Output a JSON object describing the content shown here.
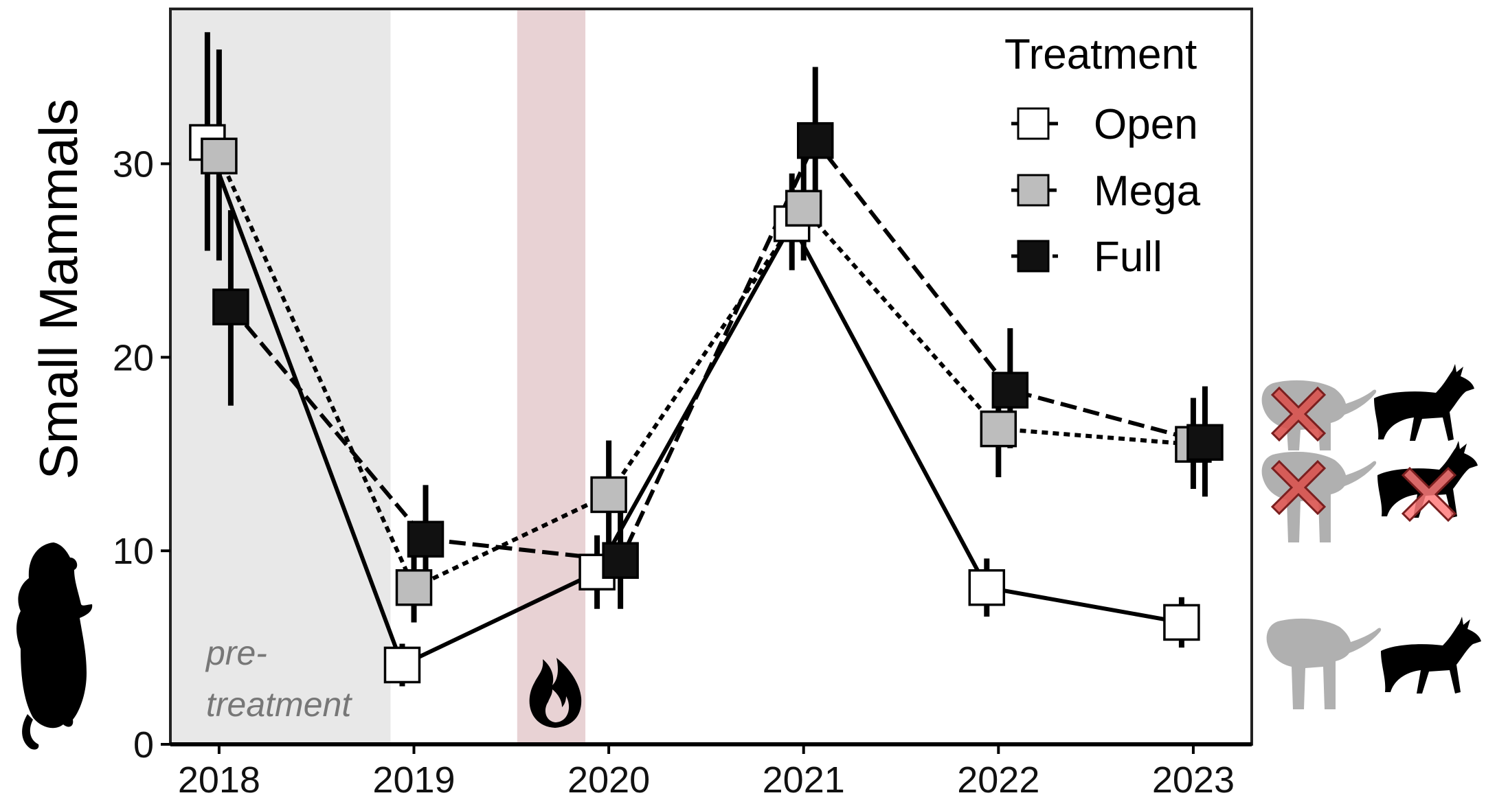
{
  "chart_data": {
    "type": "line",
    "ylabel": "Small Mammals",
    "xlabel": "",
    "x": [
      2018,
      2019,
      2020,
      2021,
      2022,
      2023
    ],
    "xlim": [
      2017.75,
      2023.3
    ],
    "ylim": [
      0,
      38
    ],
    "yticks": [
      0,
      10,
      20,
      30
    ],
    "x_tick_labels": [
      "2018",
      "2019",
      "2020",
      "2021",
      "2022",
      "2023"
    ],
    "y_tick_labels": [
      "0",
      "10",
      "20",
      "30"
    ],
    "grid": false,
    "legend": {
      "title": "Treatment",
      "placement": "top-right",
      "entries": [
        "Open",
        "Mega",
        "Full"
      ]
    },
    "shaded_periods": [
      {
        "from": 2017.75,
        "to": 2018.88,
        "color": "#e8e8e8",
        "label_line1": "pre-",
        "label_line2": "treatment"
      },
      {
        "from": 2019.53,
        "to": 2019.88,
        "color": "#e8d2d4",
        "icon": "fire-icon"
      }
    ],
    "series": [
      {
        "name": "Open",
        "fill": "#ffffff",
        "line_style": "solid",
        "x_offset": -0.06,
        "values": [
          31.1,
          4.1,
          8.9,
          26.9,
          8.1,
          6.3
        ],
        "lower": [
          25.5,
          3.0,
          7.0,
          24.5,
          6.6,
          5.0
        ],
        "upper": [
          36.8,
          5.2,
          10.8,
          29.5,
          9.6,
          7.6
        ]
      },
      {
        "name": "Mega",
        "fill": "#bdbdbd",
        "line_style": "dotted",
        "x_offset": 0.0,
        "values": [
          30.4,
          8.1,
          12.9,
          27.7,
          16.3,
          15.5
        ],
        "lower": [
          25.0,
          6.3,
          10.2,
          25.0,
          13.8,
          13.2
        ],
        "upper": [
          35.9,
          10.1,
          15.7,
          30.5,
          18.7,
          17.9
        ]
      },
      {
        "name": "Full",
        "fill": "#111111",
        "line_style": "dashed",
        "x_offset": 0.06,
        "values": [
          22.6,
          10.6,
          9.5,
          31.2,
          18.3,
          15.6
        ],
        "lower": [
          17.5,
          8.2,
          7.0,
          27.6,
          15.3,
          12.8
        ],
        "upper": [
          27.6,
          13.4,
          12.2,
          35.0,
          21.5,
          18.5
        ]
      }
    ],
    "treatment_icons": [
      {
        "row": "Full",
        "elephant_excluded": true,
        "antelope_excluded": false
      },
      {
        "row": "Mega",
        "elephant_excluded": true,
        "antelope_excluded": true
      },
      {
        "row": "Open",
        "elephant_excluded": false,
        "antelope_excluded": false
      }
    ]
  }
}
